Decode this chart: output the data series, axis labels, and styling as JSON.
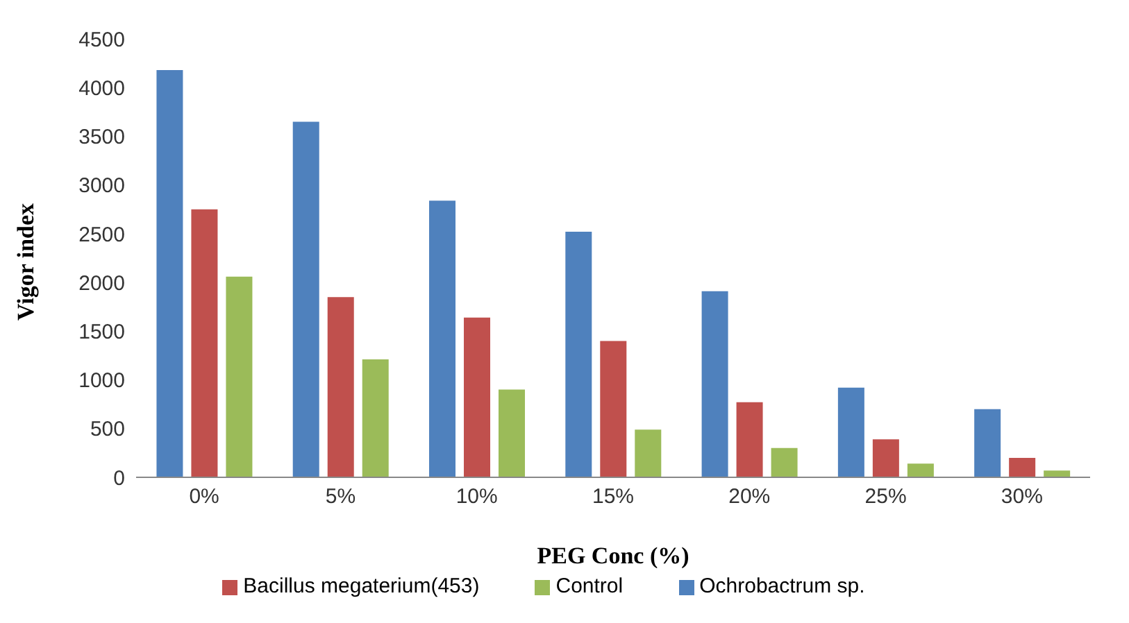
{
  "chart_data": {
    "type": "bar",
    "xlabel": "PEG Conc (%)",
    "ylabel": "Vigor index",
    "categories": [
      "0%",
      "5%",
      "10%",
      "15%",
      "20%",
      "25%",
      "30%"
    ],
    "series": [
      {
        "name": "Ochrobactrum sp.",
        "color": "#4f81bd",
        "values": [
          4180,
          3650,
          2840,
          2520,
          1910,
          920,
          700
        ]
      },
      {
        "name": "Bacillus megaterium(453)",
        "color": "#c0504d",
        "values": [
          2750,
          1850,
          1640,
          1400,
          770,
          390,
          200
        ]
      },
      {
        "name": "Control",
        "color": "#9bbb59",
        "values": [
          2060,
          1210,
          900,
          490,
          300,
          140,
          70
        ]
      }
    ],
    "ylim": [
      0,
      4500
    ],
    "yticks": [
      0,
      500,
      1000,
      1500,
      2000,
      2500,
      3000,
      3500,
      4000,
      4500
    ],
    "grid": false,
    "legend": "bottom"
  }
}
